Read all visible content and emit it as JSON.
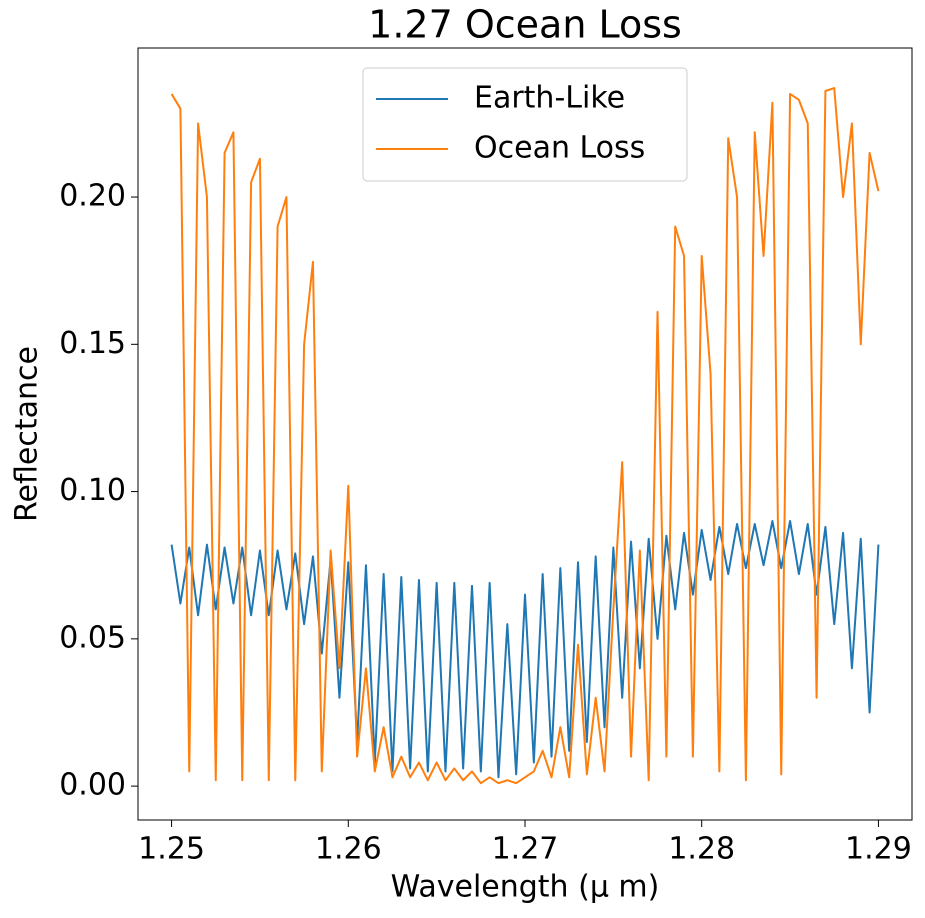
{
  "chart_data": {
    "type": "line",
    "title": "1.27 Ocean Loss",
    "x_label": "Wavelength (μ m)",
    "y_label": "Reflectance",
    "legend": "upper center",
    "xlim": [
      1.2481,
      1.2919
    ],
    "ylim": [
      -0.0115,
      0.2506
    ],
    "xticks": [
      1.25,
      1.26,
      1.27,
      1.28,
      1.29
    ],
    "yticks": [
      {
        "value": 0,
        "label": "0.00"
      },
      {
        "value": 0.05,
        "label": "0.05"
      },
      {
        "value": 0.1,
        "label": "0.10"
      },
      {
        "value": 0.15,
        "label": "0.15"
      },
      {
        "value": 0.2,
        "label": "0.20"
      }
    ],
    "x": [
      1.25,
      1.2505,
      1.251,
      1.2515,
      1.252,
      1.2525,
      1.253,
      1.2535,
      1.254,
      1.2545,
      1.255,
      1.2555,
      1.256,
      1.2565,
      1.257,
      1.2575,
      1.258,
      1.2585,
      1.259,
      1.2595,
      1.26,
      1.2605,
      1.261,
      1.2615,
      1.262,
      1.2625,
      1.263,
      1.2635,
      1.264,
      1.2645,
      1.265,
      1.2655,
      1.266,
      1.2665,
      1.267,
      1.2675,
      1.268,
      1.2685,
      1.269,
      1.2695,
      1.27,
      1.2705,
      1.271,
      1.2715,
      1.272,
      1.2725,
      1.273,
      1.2735,
      1.274,
      1.2745,
      1.275,
      1.2755,
      1.276,
      1.2765,
      1.277,
      1.2775,
      1.278,
      1.2785,
      1.279,
      1.2795,
      1.28,
      1.2805,
      1.281,
      1.2815,
      1.282,
      1.2825,
      1.283,
      1.2835,
      1.284,
      1.2845,
      1.285,
      1.2855,
      1.286,
      1.2865,
      1.287,
      1.2875,
      1.288,
      1.2885,
      1.289,
      1.2895,
      1.29
    ],
    "series": [
      {
        "name": "Earth-Like",
        "color": "#1f77b4",
        "values": [
          0.082,
          0.062,
          0.081,
          0.058,
          0.082,
          0.06,
          0.081,
          0.062,
          0.081,
          0.058,
          0.08,
          0.058,
          0.08,
          0.06,
          0.079,
          0.055,
          0.078,
          0.045,
          0.077,
          0.03,
          0.076,
          0.015,
          0.075,
          0.008,
          0.072,
          0.005,
          0.071,
          0.006,
          0.07,
          0.005,
          0.069,
          0.005,
          0.069,
          0.006,
          0.068,
          0.005,
          0.069,
          0.003,
          0.055,
          0.004,
          0.065,
          0.008,
          0.072,
          0.01,
          0.074,
          0.012,
          0.076,
          0.015,
          0.078,
          0.02,
          0.081,
          0.03,
          0.083,
          0.04,
          0.084,
          0.05,
          0.085,
          0.06,
          0.086,
          0.065,
          0.087,
          0.07,
          0.088,
          0.072,
          0.089,
          0.074,
          0.089,
          0.075,
          0.09,
          0.074,
          0.09,
          0.072,
          0.089,
          0.065,
          0.088,
          0.055,
          0.086,
          0.04,
          0.084,
          0.025,
          0.082
        ]
      },
      {
        "name": "Ocean Loss",
        "color": "#ff7f0e",
        "values": [
          0.235,
          0.23,
          0.005,
          0.225,
          0.2,
          0.002,
          0.215,
          0.222,
          0.002,
          0.205,
          0.213,
          0.002,
          0.19,
          0.2,
          0.002,
          0.15,
          0.178,
          0.005,
          0.08,
          0.04,
          0.102,
          0.01,
          0.04,
          0.005,
          0.02,
          0.003,
          0.01,
          0.003,
          0.008,
          0.002,
          0.008,
          0.002,
          0.006,
          0.002,
          0.005,
          0.001,
          0.003,
          0.001,
          0.002,
          0.001,
          0.003,
          0.005,
          0.012,
          0.003,
          0.02,
          0.003,
          0.048,
          0.004,
          0.03,
          0.005,
          0.06,
          0.11,
          0.01,
          0.08,
          0.002,
          0.161,
          0.01,
          0.19,
          0.18,
          0.01,
          0.18,
          0.14,
          0.005,
          0.22,
          0.2,
          0.002,
          0.222,
          0.18,
          0.232,
          0.004,
          0.235,
          0.233,
          0.225,
          0.03,
          0.236,
          0.237,
          0.2,
          0.225,
          0.15,
          0.215,
          0.202
        ]
      }
    ]
  }
}
